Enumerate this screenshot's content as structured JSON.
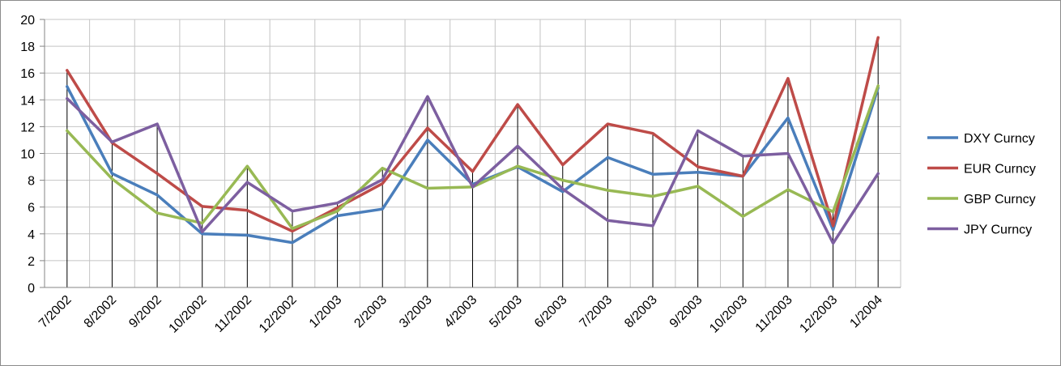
{
  "chart_data": {
    "type": "line",
    "title": "",
    "xlabel": "",
    "ylabel": "",
    "categories": [
      "7/2002",
      "8/2002",
      "9/2002",
      "10/2002",
      "11/2002",
      "12/2002",
      "1/2003",
      "2/2003",
      "3/2003",
      "4/2003",
      "5/2003",
      "6/2003",
      "7/2003",
      "8/2003",
      "9/2003",
      "10/2003",
      "11/2003",
      "12/2003",
      "1/2004"
    ],
    "ylim": [
      0,
      20
    ],
    "yticks": [
      "0",
      "2",
      "4",
      "6",
      "8",
      "10",
      "12",
      "14",
      "16",
      "18",
      "20"
    ],
    "grid": true,
    "legend_position": "right",
    "series": [
      {
        "name": "DXY Curncy",
        "color": "#4a7ebb",
        "values": [
          15.0,
          8.5,
          6.9,
          4.0,
          3.9,
          3.35,
          5.35,
          5.85,
          11.0,
          7.7,
          9.0,
          7.15,
          9.7,
          8.45,
          8.6,
          8.3,
          12.65,
          4.3,
          14.9
        ]
      },
      {
        "name": "EUR Curncy",
        "color": "#be4b48",
        "values": [
          16.2,
          10.8,
          8.5,
          6.05,
          5.75,
          4.2,
          5.95,
          7.75,
          11.9,
          8.65,
          13.65,
          9.15,
          12.2,
          11.5,
          9.0,
          8.3,
          15.6,
          4.6,
          18.65
        ]
      },
      {
        "name": "GBP Curncy",
        "color": "#98b954",
        "values": [
          11.7,
          8.1,
          5.55,
          4.8,
          9.05,
          4.4,
          5.7,
          8.9,
          7.4,
          7.5,
          9.05,
          8.0,
          7.25,
          6.8,
          7.55,
          5.3,
          7.3,
          5.65,
          15.05
        ]
      },
      {
        "name": "JPY Curncy",
        "color": "#7d5fa0",
        "values": [
          14.1,
          10.85,
          12.2,
          4.15,
          7.85,
          5.7,
          6.3,
          8.05,
          14.25,
          7.5,
          10.55,
          7.35,
          5.0,
          4.6,
          11.7,
          9.8,
          10.0,
          3.3,
          8.5
        ]
      }
    ]
  }
}
